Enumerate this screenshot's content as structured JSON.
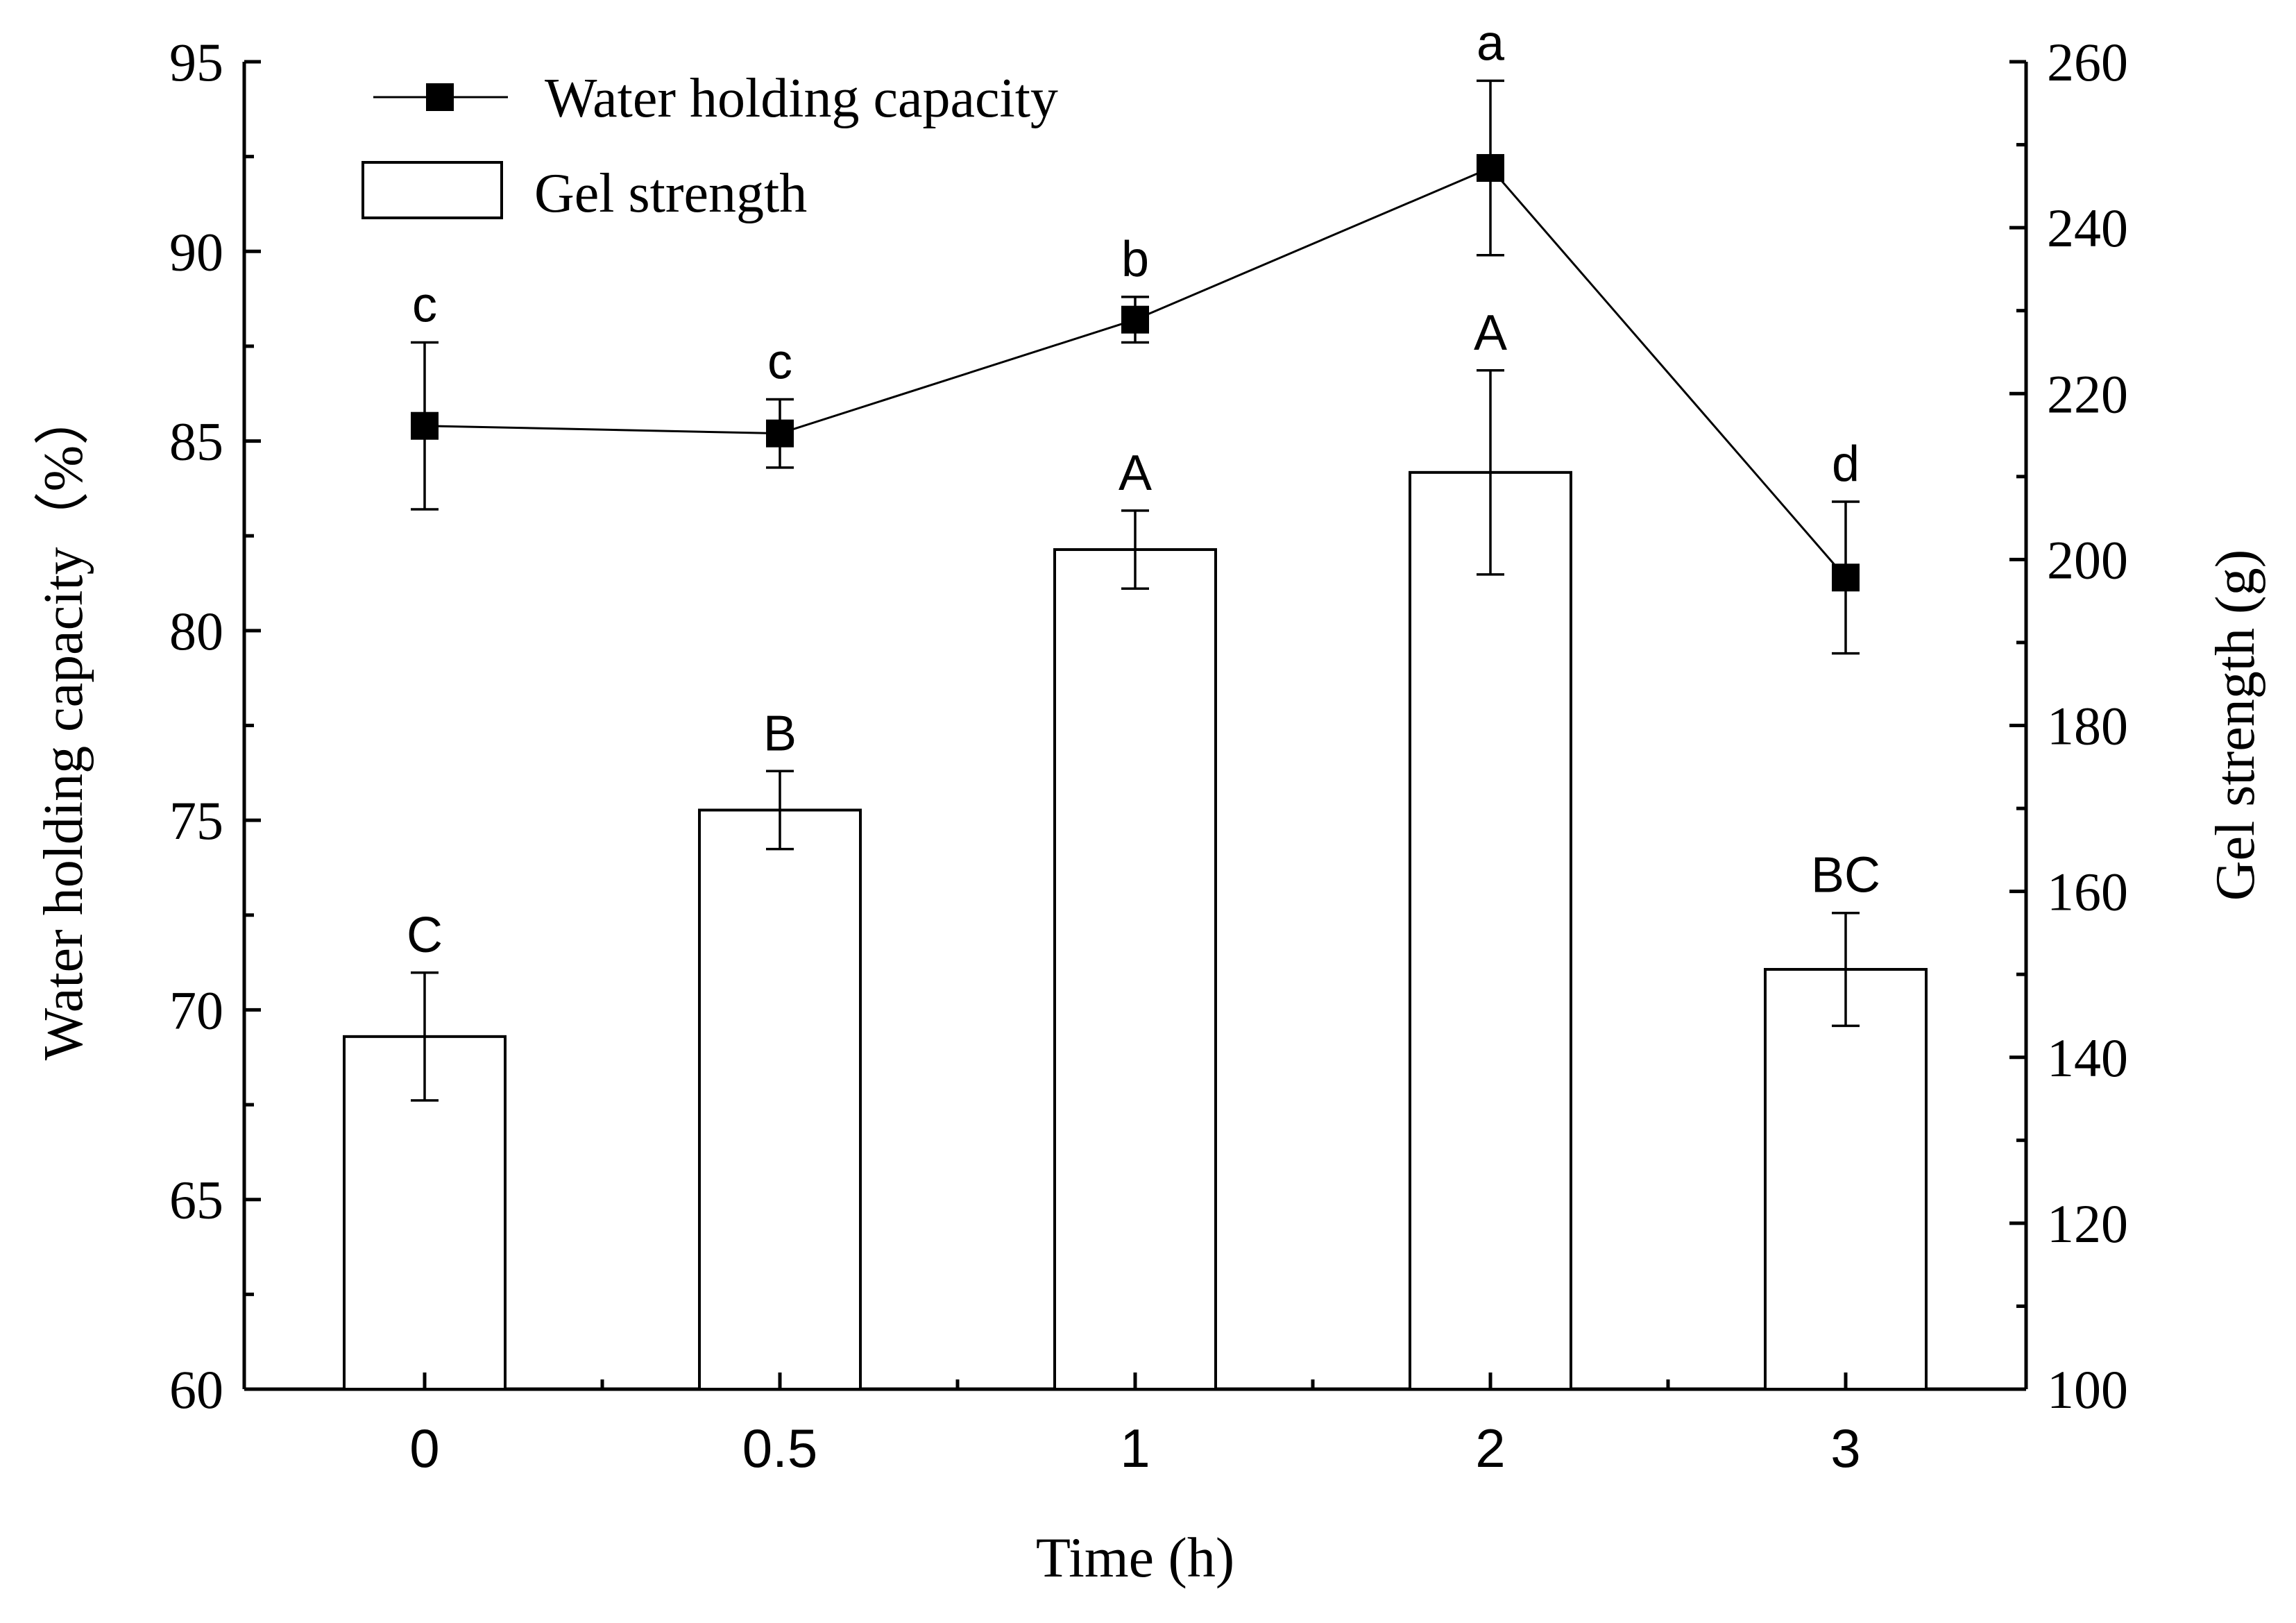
{
  "chart_data": {
    "type": "bar+line",
    "xlabel": "Time (h)",
    "ylabel_left": "Water holding capacity（%）",
    "ylabel_right": "Gel strength (g)",
    "categories": [
      "0",
      "0.5",
      "1",
      "2",
      "3"
    ],
    "ylim_left": [
      60,
      95
    ],
    "yticks_left": [
      "60",
      "65",
      "70",
      "75",
      "80",
      "85",
      "90",
      "95"
    ],
    "ylim_right": [
      100,
      260
    ],
    "yticks_right": [
      "100",
      "120",
      "140",
      "160",
      "180",
      "200",
      "220",
      "240",
      "260"
    ],
    "legend_position": "top-left",
    "series": [
      {
        "name": "Water holding capacity",
        "kind": "line",
        "axis": "left",
        "marker": "square",
        "values": [
          85.4,
          85.2,
          88.2,
          92.2,
          81.4
        ],
        "errors": [
          2.2,
          0.9,
          0.6,
          2.3,
          2.0
        ],
        "letters": [
          "c",
          "c",
          "b",
          "a",
          "d"
        ]
      },
      {
        "name": "Gel strength",
        "kind": "bar",
        "axis": "right",
        "values": [
          142.5,
          169.8,
          201.2,
          210.5,
          150.6
        ],
        "errors": [
          7.7,
          4.7,
          4.7,
          12.3,
          6.8
        ],
        "letters": [
          "C",
          "B",
          "A",
          "A",
          "BC"
        ]
      }
    ]
  }
}
